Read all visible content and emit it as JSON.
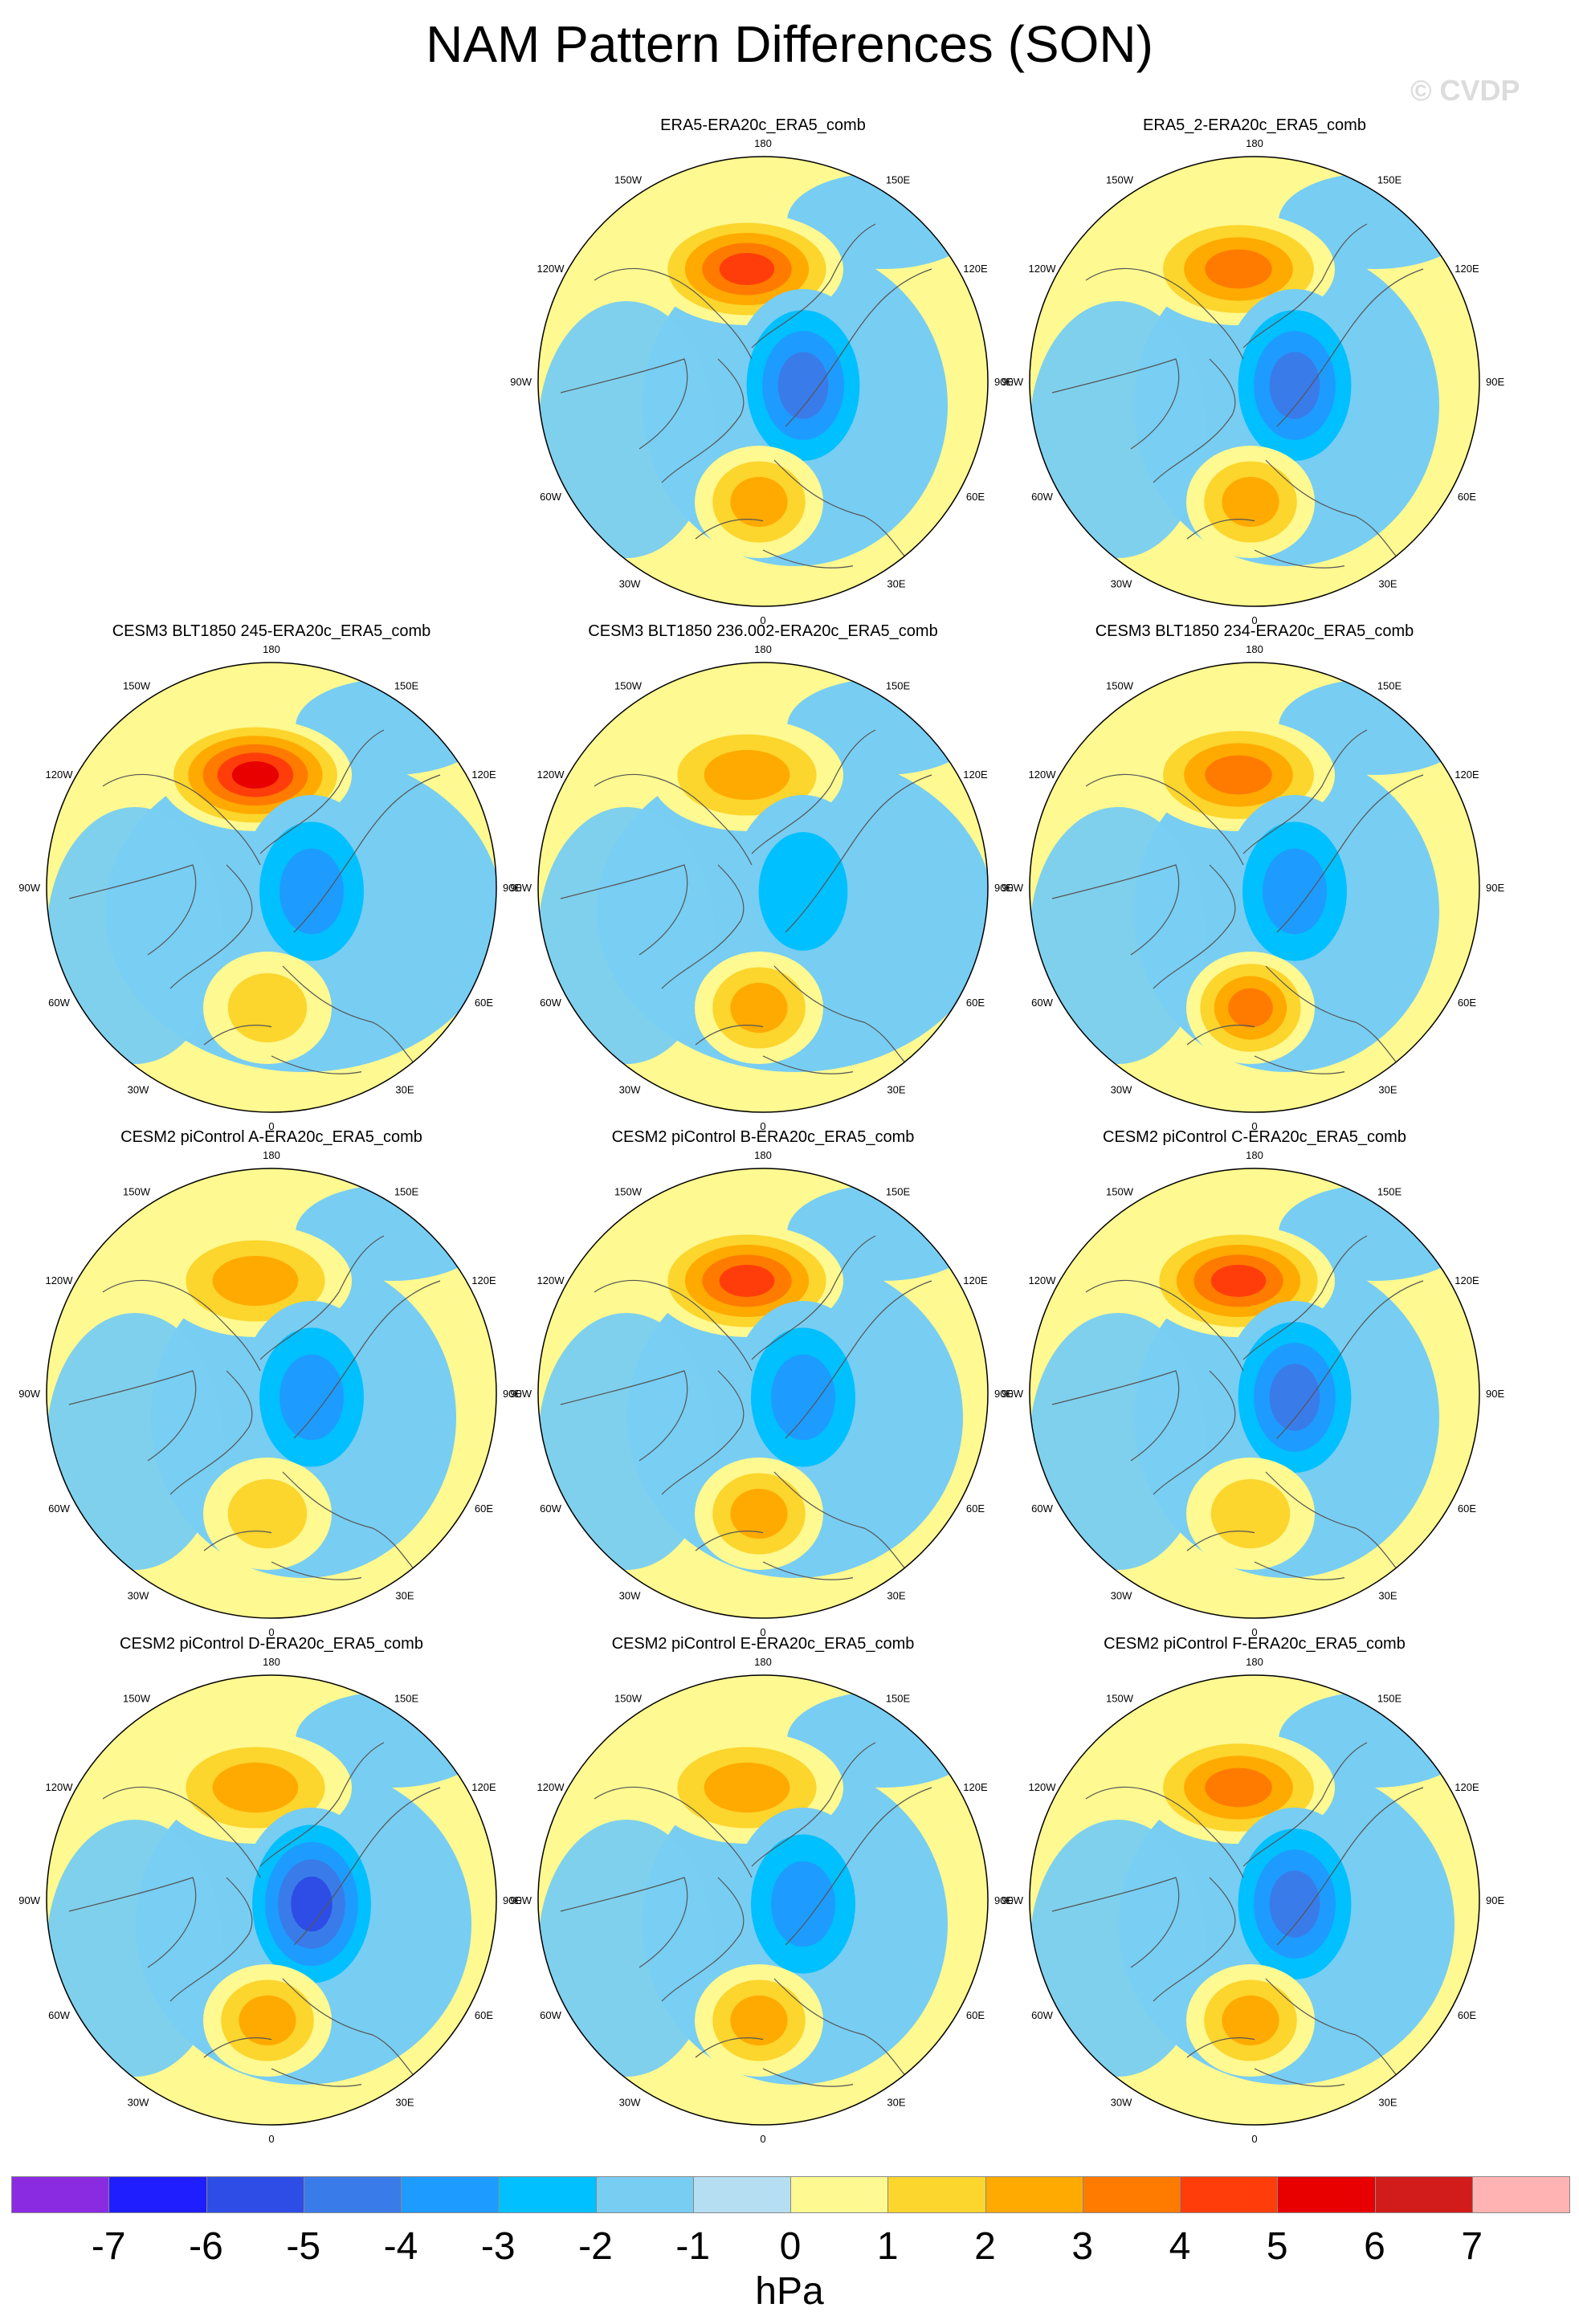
{
  "title": "NAM Pattern Differences (SON)",
  "watermark": "© CVDP",
  "map_labels": {
    "top": "180",
    "bottom": "0",
    "left": "90W",
    "right": "90E",
    "upper_left_outer": "150W",
    "upper_right_outer": "150E",
    "upper_left_inner": "120W",
    "upper_right_inner": "120E",
    "lower_left_inner": "60W",
    "lower_right_inner": "60E",
    "lower_left_outer": "30W",
    "lower_right_outer": "30E"
  },
  "panels": [
    {
      "title": "ERA5-ERA20c_ERA5_comb",
      "pac_max": 5,
      "atl_max": 3,
      "arc_min": -4,
      "aleut_amp": 1.0
    },
    {
      "title": "ERA5_2-ERA20c_ERA5_comb",
      "pac_max": 4,
      "atl_max": 3,
      "arc_min": -4,
      "aleut_amp": 1.0
    },
    {
      "title": "CESM3 BLT1850 245-ERA20c_ERA5_comb",
      "pac_max": 6,
      "atl_max": 2,
      "arc_min": -3,
      "aleut_amp": 1.3
    },
    {
      "title": "CESM3 BLT1850 236.002-ERA20c_ERA5_comb",
      "pac_max": 3,
      "atl_max": 3,
      "arc_min": -2,
      "aleut_amp": 1.3
    },
    {
      "title": "CESM3 BLT1850 234-ERA20c_ERA5_comb",
      "pac_max": 4,
      "atl_max": 4,
      "arc_min": -3,
      "aleut_amp": 1.0
    },
    {
      "title": "CESM2 piControl A-ERA20c_ERA5_comb",
      "pac_max": 3,
      "atl_max": 2,
      "arc_min": -3,
      "aleut_amp": 1.0
    },
    {
      "title": "CESM2 piControl B-ERA20c_ERA5_comb",
      "pac_max": 5,
      "atl_max": 3,
      "arc_min": -3,
      "aleut_amp": 1.1
    },
    {
      "title": "CESM2 piControl C-ERA20c_ERA5_comb",
      "pac_max": 5,
      "atl_max": 2,
      "arc_min": -4,
      "aleut_amp": 1.0
    },
    {
      "title": "CESM2 piControl D-ERA20c_ERA5_comb",
      "pac_max": 3,
      "atl_max": 3,
      "arc_min": -5,
      "aleut_amp": 1.1
    },
    {
      "title": "CESM2 piControl E-ERA20c_ERA5_comb",
      "pac_max": 3,
      "atl_max": 3,
      "arc_min": -3,
      "aleut_amp": 1.0
    },
    {
      "title": "CESM2 piControl F-ERA20c_ERA5_comb",
      "pac_max": 4,
      "atl_max": 3,
      "arc_min": -4,
      "aleut_amp": 1.1
    }
  ],
  "colorbar": {
    "units": "hPa",
    "tick_labels": [
      "-7",
      "-6",
      "-5",
      "-4",
      "-3",
      "-2",
      "-1",
      "0",
      "1",
      "2",
      "3",
      "4",
      "5",
      "6",
      "7"
    ],
    "colors": [
      "#8a2be2",
      "#1e1eff",
      "#2d4de6",
      "#3a7bea",
      "#1e9bff",
      "#00c0ff",
      "#78cdf2",
      "#b5def2",
      "#fef990",
      "#fcd52d",
      "#ffaa00",
      "#ff7b00",
      "#ff3d0a",
      "#e80000",
      "#d21c1c",
      "#ffb3b3"
    ]
  }
}
